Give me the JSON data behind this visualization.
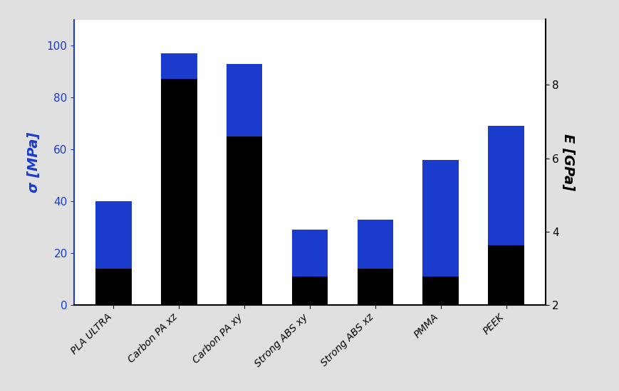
{
  "categories": [
    "PLA ULTRA",
    "Carbon PA xz",
    "Carbon PA xy",
    "Strong ABS xy",
    "Strong ABS xz",
    "PMMA",
    "PEEK"
  ],
  "sigma_values": [
    40,
    97,
    93,
    29,
    33,
    56,
    69
  ],
  "E_values_MPa": [
    14,
    87,
    65,
    11,
    14,
    11,
    23
  ],
  "blue_color": "#1a3bcc",
  "black_color": "#000000",
  "background_color": "#e0e0e0",
  "plot_background": "#ffffff",
  "left_ylabel": "σ [MPa]",
  "right_ylabel": "E [GPa]",
  "ylim_left": [
    0,
    110
  ],
  "ylim_right": [
    2,
    9.78
  ],
  "yticks_left": [
    0,
    20,
    40,
    60,
    80,
    100
  ],
  "yticks_right": [
    2,
    4,
    6,
    8
  ],
  "bar_width": 0.55,
  "left_label_color": "#1a3bcc",
  "right_label_color": "#000000",
  "tick_color": "#1a3bcc",
  "right_tick_color": "#000000"
}
